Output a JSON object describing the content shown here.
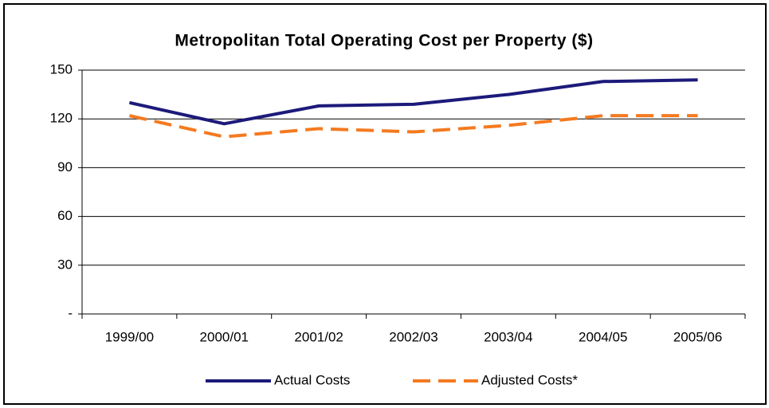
{
  "chart_data": {
    "type": "line",
    "title": "Metropolitan Total Operating Cost per Property ($)",
    "categories": [
      "1999/00",
      "2000/01",
      "2001/02",
      "2002/03",
      "2003/04",
      "2004/05",
      "2005/06"
    ],
    "series": [
      {
        "name": "Actual Costs",
        "color": "#1c1a7a",
        "dash": false,
        "values": [
          130,
          117,
          128,
          129,
          135,
          143,
          144
        ]
      },
      {
        "name": "Adjusted Costs*",
        "color": "#f47a20",
        "dash": true,
        "values": [
          122,
          109,
          114,
          112,
          116,
          122,
          122
        ]
      }
    ],
    "ylim": [
      0,
      150
    ],
    "yticks": [
      {
        "value": 0,
        "label": "-"
      },
      30,
      60,
      90,
      120,
      150
    ],
    "grid": true,
    "legend": "bottom"
  }
}
